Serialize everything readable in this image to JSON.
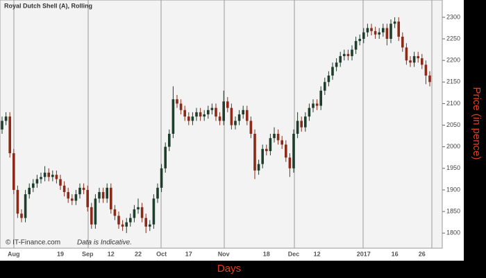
{
  "chart_data": {
    "type": "candlestick",
    "title": "Royal Dutch Shell (A), Rolling",
    "watermark": "© IT-Finance.com",
    "note": "Data is Indicative.",
    "y_label": "Price (in pence)",
    "x_label": "Days",
    "up_color": "#1f3d2c",
    "down_color": "#8a2a18",
    "categories": [
      null,
      null,
      null,
      "Aug",
      null,
      null,
      null,
      null,
      null,
      null,
      null,
      null,
      null,
      null,
      null,
      "19",
      null,
      null,
      null,
      null,
      null,
      null,
      "Sep",
      null,
      null,
      null,
      null,
      null,
      "12",
      null,
      null,
      null,
      null,
      null,
      null,
      "22",
      null,
      null,
      null,
      null,
      null,
      "Oct",
      null,
      null,
      null,
      null,
      null,
      null,
      "17",
      null,
      null,
      null,
      null,
      null,
      null,
      null,
      null,
      "Nov",
      null,
      null,
      null,
      null,
      null,
      null,
      null,
      null,
      null,
      null,
      "18",
      null,
      null,
      null,
      null,
      null,
      null,
      "Dec",
      null,
      null,
      null,
      null,
      null,
      "12",
      null,
      null,
      null,
      null,
      null,
      null,
      null,
      null,
      null,
      null,
      null,
      "2017",
      null,
      null,
      null,
      null,
      null,
      null,
      null,
      "16",
      null,
      null,
      null,
      null,
      null,
      null,
      "26",
      null,
      null
    ],
    "open": [
      2040,
      2060,
      2070,
      1985,
      1900,
      1845,
      1835,
      1890,
      1905,
      1915,
      1925,
      1930,
      1940,
      1930,
      1935,
      1925,
      1910,
      1895,
      1880,
      1875,
      1890,
      1905,
      1900,
      1860,
      1820,
      1880,
      1895,
      1880,
      1905,
      1855,
      1840,
      1820,
      1815,
      1825,
      1835,
      1855,
      1860,
      1835,
      1815,
      1820,
      1880,
      1905,
      1950,
      2000,
      2030,
      2110,
      2100,
      2085,
      2070,
      2060,
      2070,
      2080,
      2070,
      2075,
      2085,
      2090,
      2070,
      2060,
      2105,
      2090,
      2050,
      2060,
      2075,
      2085,
      2060,
      2030,
      1945,
      1960,
      1995,
      1990,
      2020,
      2030,
      2015,
      2005,
      1975,
      1950,
      2030,
      2060,
      2045,
      2070,
      2090,
      2100,
      2095,
      2130,
      2150,
      2165,
      2185,
      2195,
      2210,
      2215,
      2210,
      2225,
      2245,
      2250,
      2265,
      2275,
      2268,
      2260,
      2265,
      2275,
      2250,
      2285,
      2290,
      2255,
      2230,
      2200,
      2195,
      2210,
      2205,
      2190,
      2165
    ],
    "high": [
      2070,
      2080,
      2080,
      1995,
      1910,
      1855,
      1900,
      1915,
      1925,
      1935,
      1940,
      1955,
      1950,
      1945,
      1945,
      1935,
      1920,
      1905,
      1890,
      1900,
      1915,
      1915,
      1910,
      1870,
      1890,
      1905,
      1905,
      1915,
      1915,
      1865,
      1850,
      1830,
      1835,
      1845,
      1865,
      1880,
      1870,
      1845,
      1830,
      1890,
      1915,
      1960,
      2010,
      2040,
      2140,
      2120,
      2110,
      2095,
      2080,
      2080,
      2090,
      2090,
      2085,
      2095,
      2100,
      2100,
      2080,
      2130,
      2115,
      2100,
      2070,
      2085,
      2095,
      2095,
      2070,
      2040,
      1970,
      2005,
      2005,
      2030,
      2045,
      2040,
      2025,
      2015,
      1985,
      2040,
      2080,
      2070,
      2080,
      2100,
      2110,
      2110,
      2140,
      2160,
      2175,
      2195,
      2205,
      2220,
      2225,
      2225,
      2235,
      2255,
      2260,
      2275,
      2285,
      2285,
      2278,
      2275,
      2285,
      2285,
      2295,
      2300,
      2300,
      2265,
      2240,
      2210,
      2220,
      2220,
      2215,
      2200,
      2175
    ],
    "low": [
      2030,
      2050,
      1975,
      1890,
      1835,
      1825,
      1825,
      1880,
      1895,
      1905,
      1915,
      1920,
      1920,
      1920,
      1915,
      1900,
      1885,
      1870,
      1865,
      1865,
      1880,
      1890,
      1850,
      1810,
      1810,
      1870,
      1870,
      1870,
      1845,
      1830,
      1810,
      1805,
      1800,
      1815,
      1825,
      1845,
      1825,
      1800,
      1805,
      1810,
      1870,
      1895,
      1940,
      1990,
      2020,
      2090,
      2075,
      2060,
      2050,
      2050,
      2060,
      2060,
      2060,
      2065,
      2075,
      2060,
      2050,
      2050,
      2080,
      2040,
      2040,
      2050,
      2065,
      2050,
      2020,
      1925,
      1935,
      1950,
      1980,
      1980,
      2010,
      2005,
      1995,
      1965,
      1930,
      1940,
      2020,
      2035,
      2035,
      2060,
      2080,
      2085,
      2085,
      2120,
      2140,
      2155,
      2175,
      2185,
      2200,
      2200,
      2200,
      2215,
      2235,
      2240,
      2255,
      2258,
      2250,
      2250,
      2255,
      2235,
      2240,
      2275,
      2245,
      2220,
      2190,
      2185,
      2185,
      2195,
      2180,
      2145,
      2140
    ],
    "close": [
      2060,
      2070,
      1985,
      1900,
      1845,
      1835,
      1890,
      1905,
      1915,
      1925,
      1930,
      1940,
      1930,
      1935,
      1925,
      1910,
      1895,
      1880,
      1875,
      1890,
      1905,
      1900,
      1860,
      1820,
      1880,
      1895,
      1880,
      1905,
      1855,
      1840,
      1820,
      1815,
      1825,
      1835,
      1855,
      1860,
      1835,
      1815,
      1820,
      1880,
      1905,
      1950,
      2000,
      2030,
      2110,
      2100,
      2085,
      2070,
      2060,
      2070,
      2080,
      2070,
      2075,
      2085,
      2090,
      2070,
      2060,
      2105,
      2090,
      2050,
      2060,
      2075,
      2085,
      2060,
      2030,
      1945,
      1960,
      1995,
      1990,
      2020,
      2030,
      2015,
      2005,
      1975,
      1950,
      2030,
      2060,
      2045,
      2070,
      2090,
      2100,
      2095,
      2130,
      2150,
      2165,
      2185,
      2195,
      2210,
      2215,
      2210,
      2225,
      2245,
      2250,
      2265,
      2275,
      2268,
      2260,
      2265,
      2275,
      2250,
      2285,
      2290,
      2255,
      2230,
      2200,
      2195,
      2210,
      2205,
      2190,
      2165,
      2150
    ],
    "ylim": [
      1765,
      2340
    ],
    "yticks": [
      1800,
      1850,
      1900,
      1950,
      2000,
      2050,
      2100,
      2150,
      2200,
      2250,
      2300
    ]
  }
}
